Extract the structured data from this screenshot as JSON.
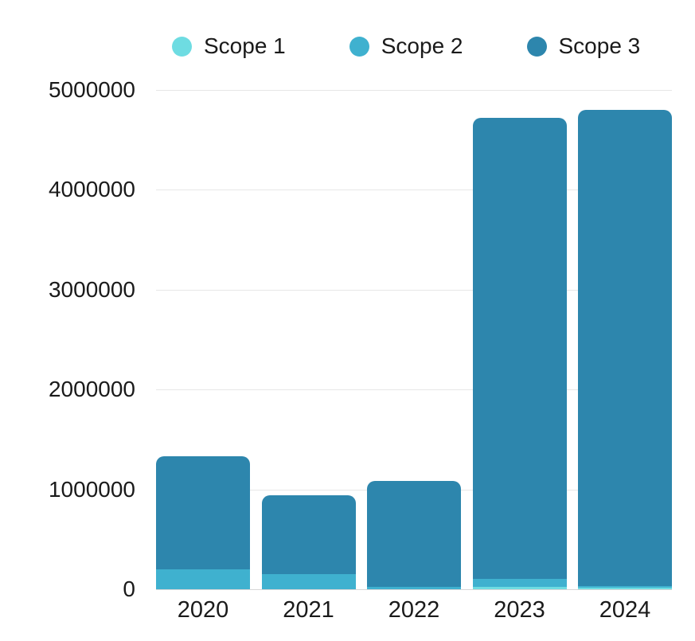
{
  "chart_data": {
    "type": "bar",
    "stacked": true,
    "title": "",
    "xlabel": "",
    "ylabel": "",
    "categories": [
      "2020",
      "2021",
      "2022",
      "2023",
      "2024"
    ],
    "series": [
      {
        "name": "Scope 1",
        "color": "#6edce2",
        "values": [
          0,
          0,
          0,
          25000,
          15000
        ]
      },
      {
        "name": "Scope 2",
        "color": "#3fb1cf",
        "values": [
          200000,
          150000,
          25000,
          80000,
          15000
        ]
      },
      {
        "name": "Scope 3",
        "color": "#2d86ad",
        "values": [
          1130000,
          790000,
          1060000,
          4620000,
          4770000
        ]
      }
    ],
    "totals": [
      1330000,
      940000,
      1085000,
      4725000,
      4800000
    ],
    "ylim": [
      0,
      5000000
    ],
    "yticks": [
      0,
      1000000,
      2000000,
      3000000,
      4000000,
      5000000
    ],
    "ytick_labels": [
      "0",
      "1000000",
      "2000000",
      "3000000",
      "4000000",
      "5000000"
    ],
    "grid": true,
    "legend_position": "top"
  },
  "colors": {
    "background": "#ffffff",
    "text": "#1a1a1a",
    "gridline": "#e7e7e7",
    "baseline": "#d6d6d6",
    "scope1": "#6edce2",
    "scope2": "#3fb1cf",
    "scope3": "#2d86ad"
  }
}
